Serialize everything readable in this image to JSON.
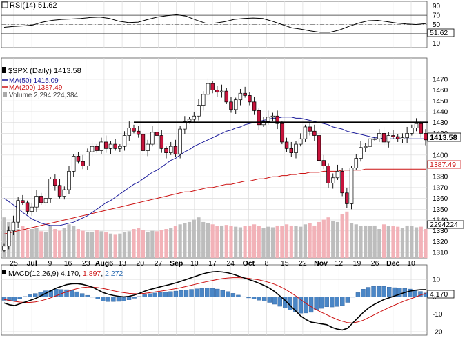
{
  "chart_data": [
    {
      "type": "line",
      "panel": "rsi",
      "label": "RSI(14) 51.62",
      "ylim": [
        0,
        100
      ],
      "y_ticks": [
        10,
        30,
        50,
        70,
        90
      ],
      "overbought": 70,
      "oversold": 30,
      "current_value_label": "51.62",
      "series": [
        {
          "name": "RSI(14)",
          "color": "#000000",
          "values": [
            44,
            46,
            47,
            49,
            55,
            59,
            61,
            62,
            63,
            65,
            66,
            63,
            57,
            54,
            55,
            61,
            66,
            69,
            71,
            68,
            60,
            53,
            53,
            56,
            61,
            63,
            64,
            63,
            57,
            50,
            43,
            40,
            36,
            33,
            33,
            38,
            46,
            53,
            58,
            59,
            56,
            53,
            51,
            50,
            52
          ]
        }
      ]
    },
    {
      "type": "candlestick",
      "panel": "price",
      "title": "$SPX (Daily) 1413.58",
      "grid": true,
      "ylim": [
        1305,
        1482
      ],
      "y_ticks": [
        1310,
        1320,
        1330,
        1340,
        1350,
        1360,
        1370,
        1380,
        1390,
        1400,
        1410,
        1420,
        1430,
        1440,
        1450,
        1460,
        1470
      ],
      "y_tick_labels": [
        "1310",
        "1320",
        "1330",
        "1340",
        "1350",
        "1360",
        "1370",
        "1380",
        "1390",
        "1400",
        "",
        "1420",
        "1430",
        "1440",
        "1450",
        "1460",
        "1470"
      ],
      "x_tick_labels": [
        "25",
        "Jul",
        "9",
        "16",
        "23",
        "Aug6",
        "13",
        "20",
        "27",
        "Sep",
        "10",
        "17",
        "24",
        "Oct",
        "8",
        "15",
        "22",
        "Nov",
        "12",
        "19",
        "26",
        "Dec",
        "10"
      ],
      "x_month_labels": [
        "Jul",
        "Aug6",
        "Sep",
        "Oct",
        "Nov",
        "Dec"
      ],
      "legend": [
        {
          "text": "$SPX (Daily) 1413.58",
          "color": "#000000",
          "marker": "candle-icon"
        },
        {
          "text": "MA(50) 1415.09",
          "color": "#1a1a9a"
        },
        {
          "text": "MA(200) 1387.49",
          "color": "#cc1010"
        },
        {
          "text": "Volume 2,294,224,384",
          "color": "#666666",
          "marker": "volume-icon"
        }
      ],
      "price_tag": {
        "text": "1413.58",
        "value": 1413.58
      },
      "ma200_tag": {
        "text": "1387.49",
        "value": 1387.49
      },
      "volume_tag": {
        "text": "2294224"
      },
      "resistance_level": 1430,
      "close": [
        1316,
        1330,
        1338,
        1358,
        1356,
        1348,
        1352,
        1362,
        1356,
        1360,
        1378,
        1372,
        1362,
        1368,
        1385,
        1399,
        1394,
        1390,
        1403,
        1408,
        1404,
        1412,
        1406,
        1410,
        1406,
        1408,
        1418,
        1425,
        1422,
        1419,
        1404,
        1410,
        1421,
        1418,
        1406,
        1402,
        1408,
        1401,
        1424,
        1431,
        1433,
        1436,
        1446,
        1456,
        1466,
        1460,
        1458,
        1459,
        1449,
        1442,
        1451,
        1457,
        1455,
        1449,
        1441,
        1428,
        1431,
        1435,
        1436,
        1429,
        1412,
        1406,
        1402,
        1410,
        1415,
        1426,
        1422,
        1418,
        1395,
        1390,
        1374,
        1379,
        1385,
        1365,
        1355,
        1388,
        1397,
        1407,
        1408,
        1415,
        1415,
        1420,
        1412,
        1418,
        1417,
        1415,
        1416,
        1420,
        1425,
        1429,
        1420,
        1414
      ],
      "ma50": [
        1360,
        1357,
        1354,
        1351,
        1347,
        1344,
        1341,
        1339,
        1337,
        1336,
        1335,
        1335,
        1335,
        1336,
        1337,
        1338,
        1340,
        1342,
        1344,
        1347,
        1350,
        1353,
        1356,
        1358,
        1361,
        1364,
        1367,
        1370,
        1373,
        1375,
        1378,
        1381,
        1384,
        1386,
        1389,
        1392,
        1395,
        1397,
        1400,
        1403,
        1405,
        1408,
        1410,
        1412,
        1414,
        1416,
        1418,
        1420,
        1422,
        1423,
        1425,
        1426,
        1428,
        1429,
        1430,
        1431,
        1432,
        1433,
        1434,
        1434,
        1435,
        1435,
        1435,
        1434,
        1434,
        1433,
        1432,
        1431,
        1430,
        1429,
        1428,
        1426,
        1425,
        1424,
        1422,
        1421,
        1420,
        1419,
        1418,
        1417,
        1416,
        1416,
        1415,
        1415,
        1415,
        1415,
        1415,
        1415,
        1415,
        1415,
        1415,
        1415
      ],
      "ma200": [
        1327,
        1328,
        1329,
        1330,
        1331,
        1332,
        1333,
        1334,
        1335,
        1336,
        1337,
        1338,
        1339,
        1340,
        1341,
        1342,
        1343,
        1344,
        1345,
        1346,
        1347,
        1348,
        1349,
        1350,
        1351,
        1352,
        1353,
        1354,
        1355,
        1356,
        1357,
        1358,
        1359,
        1360,
        1361,
        1362,
        1363,
        1364,
        1365,
        1366,
        1366,
        1367,
        1368,
        1369,
        1370,
        1370,
        1371,
        1372,
        1373,
        1373,
        1374,
        1375,
        1376,
        1376,
        1377,
        1378,
        1378,
        1379,
        1380,
        1380,
        1381,
        1381,
        1382,
        1382,
        1383,
        1383,
        1384,
        1384,
        1384,
        1385,
        1385,
        1385,
        1385,
        1386,
        1386,
        1386,
        1386,
        1386,
        1387,
        1387,
        1387,
        1387,
        1387,
        1387,
        1387,
        1387,
        1387,
        1387,
        1387,
        1387,
        1387,
        1387
      ],
      "volume": [
        0.7,
        0.62,
        0.58,
        0.5,
        0.55,
        0.48,
        0.5,
        0.52,
        0.46,
        0.45,
        0.55,
        0.5,
        0.47,
        0.52,
        0.58,
        0.55,
        0.5,
        0.47,
        0.45,
        0.45,
        0.48,
        0.46,
        0.44,
        0.42,
        0.4,
        0.42,
        0.44,
        0.46,
        0.5,
        0.52,
        0.48,
        0.45,
        0.47,
        0.46,
        0.48,
        0.5,
        0.52,
        0.55,
        0.58,
        0.6,
        0.62,
        0.66,
        0.7,
        0.62,
        0.6,
        0.58,
        0.55,
        0.56,
        0.57,
        0.55,
        0.54,
        0.53,
        0.55,
        0.56,
        0.58,
        0.55,
        0.52,
        0.54,
        0.53,
        0.56,
        0.55,
        0.58,
        0.56,
        0.55,
        0.54,
        0.58,
        0.6,
        0.56,
        0.62,
        0.66,
        0.7,
        0.64,
        0.62,
        0.75,
        0.8,
        0.6,
        0.58,
        0.55,
        0.56,
        0.55,
        0.56,
        0.5,
        0.58,
        0.55,
        0.55,
        0.54,
        0.52,
        0.56,
        0.55,
        0.53,
        0.54,
        0.5
      ]
    },
    {
      "type": "line",
      "panel": "macd",
      "label": "MACD(12,26,9) 4.170, 1.897, 2.272",
      "label_parts": [
        {
          "text": "MACD(12,26,9)",
          "color": "#000000"
        },
        {
          "text": "4.170",
          "color": "#000000"
        },
        {
          "text": "1.897",
          "color": "#cc1010"
        },
        {
          "text": "2.272",
          "color": "#2a6ab0"
        }
      ],
      "ylim": [
        -22,
        16
      ],
      "y_ticks": [
        -20,
        -10,
        0,
        10
      ],
      "y_tick_labels": [
        "-20",
        "-10",
        "0",
        "10"
      ],
      "current_value_label": "4.170",
      "signal_value_label": "1.897",
      "series": [
        {
          "name": "MACD",
          "color": "#000000",
          "values": [
            -3.5,
            -4.5,
            -5.0,
            -4.0,
            -3.0,
            -2.0,
            -1.0,
            0.5,
            2.0,
            3.5,
            5.0,
            6.0,
            7.0,
            7.5,
            7.6,
            7.2,
            6.5,
            5.5,
            4.0,
            2.5,
            1.5,
            0.8,
            0.3,
            0,
            0.3,
            1.0,
            2.0,
            3.2,
            4.2,
            5.0,
            5.8,
            6.5,
            7.2,
            8.0,
            9.0,
            10.0,
            11.0,
            12.0,
            13.0,
            13.8,
            14.3,
            14.5,
            14.2,
            13.8,
            13.0,
            12.0,
            11.0,
            10.0,
            9.0,
            7.8,
            6.5,
            5.0,
            3.0,
            0.5,
            -2.0,
            -5.0,
            -8.0,
            -11.0,
            -13.0,
            -14.5,
            -15.0,
            -15.5,
            -16.0,
            -17.5,
            -18.5,
            -19.0,
            -18.0,
            -15.0,
            -12.0,
            -9.0,
            -6.5,
            -4.5,
            -3.0,
            -1.5,
            -0.5,
            0.5,
            1.5,
            2.5,
            3.3,
            3.8,
            4.1,
            4.17
          ]
        },
        {
          "name": "Signal",
          "color": "#cc1010",
          "values": [
            -1.5,
            -2.0,
            -2.6,
            -3.0,
            -3.2,
            -3.2,
            -2.9,
            -2.3,
            -1.5,
            -0.5,
            0.6,
            1.8,
            2.9,
            3.9,
            4.7,
            5.3,
            5.6,
            5.6,
            5.3,
            4.8,
            4.2,
            3.5,
            2.9,
            2.4,
            2.0,
            1.8,
            1.8,
            2.0,
            2.4,
            2.8,
            3.2,
            3.7,
            4.2,
            4.7,
            5.3,
            6.0,
            6.7,
            7.4,
            8.1,
            8.8,
            9.4,
            10.0,
            10.5,
            10.8,
            11.0,
            11.0,
            10.9,
            10.6,
            10.2,
            9.7,
            9.0,
            8.2,
            7.2,
            5.9,
            4.4,
            2.6,
            0.6,
            -1.6,
            -3.7,
            -5.6,
            -7.4,
            -8.9,
            -10.3,
            -11.7,
            -13.0,
            -14.0,
            -14.8,
            -15.0,
            -14.4,
            -13.4,
            -12.0,
            -10.5,
            -9.0,
            -7.5,
            -6.1,
            -4.8,
            -3.5,
            -2.3,
            -1.2,
            -0.2,
            1.0,
            1.9
          ]
        },
        {
          "name": "Histogram",
          "color": "#2a6ab0",
          "values": [
            -2.0,
            -2.5,
            -2.4,
            -1.0,
            0.2,
            1.2,
            1.9,
            2.8,
            3.5,
            4.0,
            4.4,
            4.2,
            4.1,
            3.6,
            2.9,
            1.9,
            0.9,
            -0.1,
            -1.3,
            -2.3,
            -2.7,
            -2.7,
            -2.6,
            -2.4,
            -1.7,
            -0.8,
            0.2,
            1.2,
            1.8,
            2.2,
            2.6,
            2.8,
            3.0,
            3.3,
            3.7,
            4.0,
            4.3,
            4.6,
            4.9,
            5.0,
            4.9,
            4.5,
            3.7,
            3.0,
            2.0,
            1.0,
            0.1,
            -0.6,
            -1.2,
            -1.9,
            -2.5,
            -3.2,
            -4.2,
            -5.4,
            -6.4,
            -7.6,
            -8.6,
            -9.4,
            -9.3,
            -8.9,
            -7.6,
            -6.6,
            -5.7,
            -5.8,
            -5.5,
            -5.0,
            -3.2,
            0,
            2.4,
            4.4,
            5.5,
            6.0,
            6.0,
            6.0,
            5.6,
            5.3,
            5.0,
            4.8,
            4.5,
            4.0,
            3.1,
            2.27
          ]
        }
      ]
    }
  ]
}
